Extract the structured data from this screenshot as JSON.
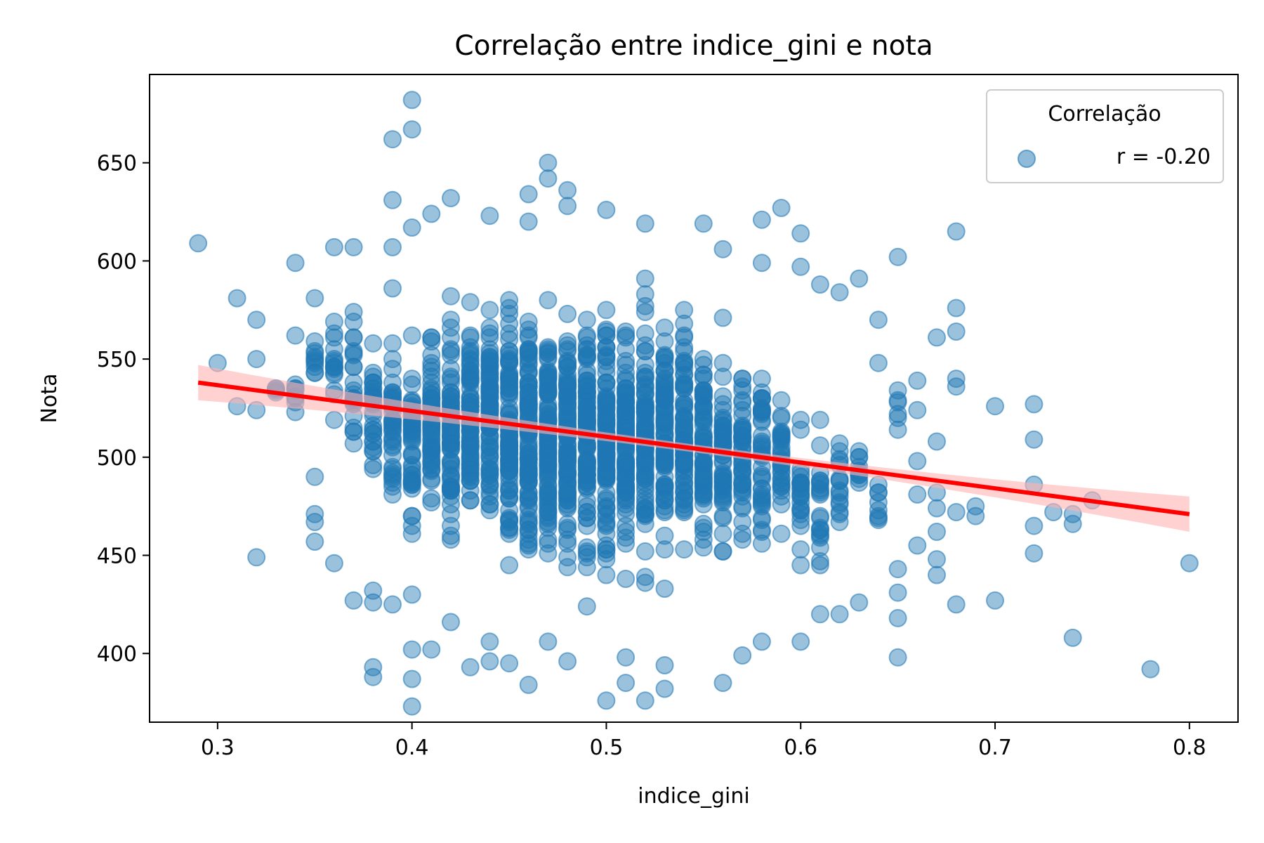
{
  "chart_data": {
    "type": "scatter",
    "title": "Correlação entre indice_gini e nota",
    "xlabel": "indice_gini",
    "ylabel": "Nota",
    "xlim": [
      0.265,
      0.825
    ],
    "ylim": [
      365,
      695
    ],
    "x_ticks": [
      0.3,
      0.4,
      0.5,
      0.6,
      0.7,
      0.8
    ],
    "x_tick_labels": [
      "0.3",
      "0.4",
      "0.5",
      "0.6",
      "0.7",
      "0.8"
    ],
    "y_ticks": [
      400,
      450,
      500,
      550,
      600,
      650
    ],
    "y_tick_labels": [
      "400",
      "450",
      "500",
      "550",
      "600",
      "650"
    ],
    "grid": false,
    "legend": {
      "title": "Correlação",
      "placement": "top-right",
      "entries": [
        "r = -0.20"
      ]
    },
    "colors": {
      "points": "#1f77b4",
      "regression_line": "#ff0000",
      "confidence_band": "#ffb3b3"
    },
    "regression": {
      "x": [
        0.29,
        0.8
      ],
      "y": [
        538,
        471
      ],
      "ci_halfwidth": [
        4,
        7
      ]
    },
    "outlier_points": [
      [
        0.29,
        609
      ],
      [
        0.3,
        548
      ],
      [
        0.31,
        581
      ],
      [
        0.31,
        526
      ],
      [
        0.32,
        570
      ],
      [
        0.32,
        550
      ],
      [
        0.32,
        524
      ],
      [
        0.32,
        449
      ],
      [
        0.33,
        535
      ],
      [
        0.34,
        599
      ],
      [
        0.34,
        562
      ],
      [
        0.35,
        581
      ],
      [
        0.35,
        490
      ],
      [
        0.35,
        471
      ],
      [
        0.35,
        467
      ],
      [
        0.35,
        457
      ],
      [
        0.36,
        607
      ],
      [
        0.36,
        446
      ],
      [
        0.37,
        607
      ],
      [
        0.37,
        427
      ],
      [
        0.38,
        432
      ],
      [
        0.38,
        426
      ],
      [
        0.38,
        393
      ],
      [
        0.38,
        388
      ],
      [
        0.39,
        662
      ],
      [
        0.39,
        631
      ],
      [
        0.39,
        607
      ],
      [
        0.39,
        586
      ],
      [
        0.39,
        425
      ],
      [
        0.4,
        682
      ],
      [
        0.4,
        667
      ],
      [
        0.4,
        617
      ],
      [
        0.4,
        430
      ],
      [
        0.4,
        402
      ],
      [
        0.4,
        387
      ],
      [
        0.4,
        373
      ],
      [
        0.41,
        624
      ],
      [
        0.41,
        402
      ],
      [
        0.42,
        632
      ],
      [
        0.42,
        416
      ],
      [
        0.43,
        393
      ],
      [
        0.44,
        623
      ],
      [
        0.44,
        406
      ],
      [
        0.44,
        396
      ],
      [
        0.45,
        395
      ],
      [
        0.46,
        634
      ],
      [
        0.46,
        620
      ],
      [
        0.46,
        384
      ],
      [
        0.47,
        650
      ],
      [
        0.47,
        642
      ],
      [
        0.47,
        406
      ],
      [
        0.48,
        636
      ],
      [
        0.48,
        628
      ],
      [
        0.48,
        396
      ],
      [
        0.5,
        626
      ],
      [
        0.5,
        376
      ],
      [
        0.51,
        398
      ],
      [
        0.51,
        385
      ],
      [
        0.52,
        619
      ],
      [
        0.52,
        376
      ],
      [
        0.53,
        394
      ],
      [
        0.53,
        382
      ],
      [
        0.55,
        619
      ],
      [
        0.56,
        385
      ],
      [
        0.56,
        606
      ],
      [
        0.57,
        399
      ],
      [
        0.58,
        621
      ],
      [
        0.58,
        599
      ],
      [
        0.58,
        406
      ],
      [
        0.59,
        627
      ],
      [
        0.6,
        614
      ],
      [
        0.6,
        597
      ],
      [
        0.6,
        406
      ],
      [
        0.61,
        588
      ],
      [
        0.61,
        420
      ],
      [
        0.62,
        584
      ],
      [
        0.62,
        420
      ],
      [
        0.63,
        591
      ],
      [
        0.63,
        426
      ],
      [
        0.64,
        570
      ],
      [
        0.64,
        548
      ],
      [
        0.65,
        602
      ],
      [
        0.65,
        443
      ],
      [
        0.65,
        431
      ],
      [
        0.65,
        418
      ],
      [
        0.65,
        398
      ],
      [
        0.66,
        539
      ],
      [
        0.66,
        524
      ],
      [
        0.66,
        498
      ],
      [
        0.66,
        481
      ],
      [
        0.66,
        455
      ],
      [
        0.67,
        561
      ],
      [
        0.67,
        508
      ],
      [
        0.67,
        482
      ],
      [
        0.67,
        474
      ],
      [
        0.67,
        462
      ],
      [
        0.67,
        448
      ],
      [
        0.67,
        440
      ],
      [
        0.68,
        615
      ],
      [
        0.68,
        576
      ],
      [
        0.68,
        564
      ],
      [
        0.68,
        540
      ],
      [
        0.68,
        536
      ],
      [
        0.68,
        472
      ],
      [
        0.68,
        425
      ],
      [
        0.69,
        475
      ],
      [
        0.69,
        470
      ],
      [
        0.7,
        526
      ],
      [
        0.7,
        427
      ],
      [
        0.72,
        527
      ],
      [
        0.72,
        509
      ],
      [
        0.72,
        486
      ],
      [
        0.72,
        465
      ],
      [
        0.72,
        451
      ],
      [
        0.73,
        472
      ],
      [
        0.74,
        471
      ],
      [
        0.74,
        466
      ],
      [
        0.74,
        408
      ],
      [
        0.75,
        478
      ],
      [
        0.78,
        392
      ],
      [
        0.8,
        446
      ]
    ],
    "core_cloud": {
      "description_note_free": true,
      "columns": [
        {
          "x": 0.33,
          "y_range": [
            530,
            537
          ],
          "count": 3
        },
        {
          "x": 0.34,
          "y_range": [
            515,
            550
          ],
          "count": 8
        },
        {
          "x": 0.35,
          "y_range": [
            520,
            575
          ],
          "count": 10
        },
        {
          "x": 0.36,
          "y_range": [
            495,
            600
          ],
          "count": 16
        },
        {
          "x": 0.37,
          "y_range": [
            470,
            595
          ],
          "count": 22
        },
        {
          "x": 0.38,
          "y_range": [
            465,
            590
          ],
          "count": 30
        },
        {
          "x": 0.39,
          "y_range": [
            445,
            580
          ],
          "count": 40
        },
        {
          "x": 0.4,
          "y_range": [
            440,
            580
          ],
          "count": 50
        },
        {
          "x": 0.41,
          "y_range": [
            440,
            595
          ],
          "count": 60
        },
        {
          "x": 0.42,
          "y_range": [
            420,
            605
          ],
          "count": 75
        },
        {
          "x": 0.43,
          "y_range": [
            430,
            605
          ],
          "count": 85
        },
        {
          "x": 0.44,
          "y_range": [
            430,
            605
          ],
          "count": 95
        },
        {
          "x": 0.45,
          "y_range": [
            415,
            610
          ],
          "count": 100
        },
        {
          "x": 0.46,
          "y_range": [
            415,
            610
          ],
          "count": 105
        },
        {
          "x": 0.47,
          "y_range": [
            415,
            610
          ],
          "count": 110
        },
        {
          "x": 0.48,
          "y_range": [
            410,
            610
          ],
          "count": 110
        },
        {
          "x": 0.49,
          "y_range": [
            410,
            612
          ],
          "count": 108
        },
        {
          "x": 0.5,
          "y_range": [
            415,
            610
          ],
          "count": 105
        },
        {
          "x": 0.51,
          "y_range": [
            410,
            612
          ],
          "count": 100
        },
        {
          "x": 0.52,
          "y_range": [
            410,
            605
          ],
          "count": 95
        },
        {
          "x": 0.53,
          "y_range": [
            415,
            610
          ],
          "count": 88
        },
        {
          "x": 0.54,
          "y_range": [
            415,
            610
          ],
          "count": 80
        },
        {
          "x": 0.55,
          "y_range": [
            420,
            590
          ],
          "count": 70
        },
        {
          "x": 0.56,
          "y_range": [
            420,
            585
          ],
          "count": 60
        },
        {
          "x": 0.57,
          "y_range": [
            420,
            590
          ],
          "count": 50
        },
        {
          "x": 0.58,
          "y_range": [
            420,
            585
          ],
          "count": 42
        },
        {
          "x": 0.59,
          "y_range": [
            430,
            565
          ],
          "count": 34
        },
        {
          "x": 0.6,
          "y_range": [
            430,
            535
          ],
          "count": 26
        },
        {
          "x": 0.61,
          "y_range": [
            420,
            535
          ],
          "count": 22
        },
        {
          "x": 0.62,
          "y_range": [
            440,
            530
          ],
          "count": 16
        },
        {
          "x": 0.63,
          "y_range": [
            460,
            525
          ],
          "count": 10
        },
        {
          "x": 0.64,
          "y_range": [
            445,
            510
          ],
          "count": 8
        },
        {
          "x": 0.65,
          "y_range": [
            480,
            560
          ],
          "count": 6
        }
      ]
    }
  }
}
